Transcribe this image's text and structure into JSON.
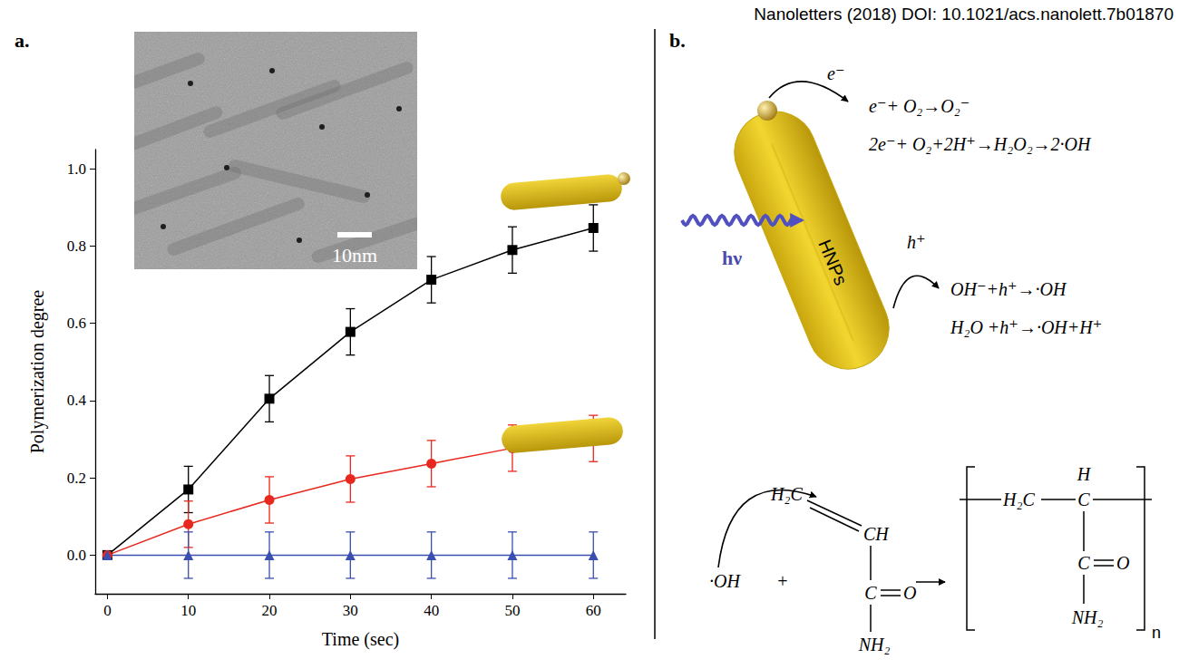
{
  "header": {
    "citation": "Nanoletters (2018) DOI: 10.1021/acs.nanolett.7b01870"
  },
  "panel_labels": {
    "a": "a.",
    "b": "b."
  },
  "chart_data": {
    "type": "line",
    "x_label": "Time (sec)",
    "y_label": "Polymerization degree",
    "x": [
      0,
      10,
      20,
      30,
      40,
      50,
      60
    ],
    "xlim": [
      -1.5,
      64
    ],
    "xticks": [
      0,
      10,
      20,
      30,
      40,
      50,
      60
    ],
    "ylim": [
      -0.1,
      1.05
    ],
    "yticks": [
      {
        "value": 0,
        "label": "0.0"
      },
      {
        "value": 0.2,
        "label": "0.2"
      },
      {
        "value": 0.4,
        "label": "0.4"
      },
      {
        "value": 0.6,
        "label": "0.6"
      },
      {
        "value": 0.8,
        "label": "0.8"
      },
      {
        "value": 1,
        "label": "1.0"
      }
    ],
    "grid": false,
    "series": [
      {
        "color": "#000000",
        "marker": "square",
        "values": [
          0,
          0.17,
          0.405,
          0.578,
          0.713,
          0.79,
          0.847
        ],
        "errors": [
          0,
          0.06,
          0.06,
          0.06,
          0.06,
          0.06,
          0.06
        ]
      },
      {
        "color": "#e8281e",
        "marker": "circle",
        "values": [
          0,
          0.08,
          0.143,
          0.197,
          0.237,
          0.277,
          0.302
        ],
        "errors": [
          0,
          0.06,
          0.06,
          0.06,
          0.06,
          0.06,
          0.06
        ]
      },
      {
        "color": "#3a4fb0",
        "marker": "triangle",
        "values": [
          0,
          0,
          0,
          0,
          0,
          0,
          0
        ],
        "errors": [
          0,
          0.06,
          0.06,
          0.06,
          0.06,
          0.06,
          0.06
        ]
      }
    ]
  },
  "inset": {
    "scale_bar": "10nm"
  },
  "diagram": {
    "electron": "e⁻",
    "hole": "h⁺",
    "light": "hν",
    "particle": "HNPs",
    "electron_reactions": [
      "e⁻+ O₂→O₂⁻",
      "2e⁻+ O₂+2H⁺→H₂O₂→2·OH"
    ],
    "hole_reactions": [
      "OH⁻+h⁺→·OH",
      "H₂O +h⁺→·OH+H⁺"
    ],
    "monomer": {
      "radical": "·OH",
      "plus": "+",
      "ch2": "H₂C",
      "ch": "CH",
      "carbonyl_c": "C",
      "oxygen": "O",
      "amide": "NH₂"
    },
    "polymer": {
      "ch2": "H₂C",
      "h": "H",
      "c": "C",
      "carbonyl_c": "C",
      "oxygen": "O",
      "amide": "NH₂",
      "repeat": "n"
    }
  }
}
